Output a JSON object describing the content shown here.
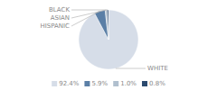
{
  "chart_data": {
    "type": "pie",
    "categories": [
      "WHITE",
      "HISPANIC",
      "ASIAN",
      "BLACK"
    ],
    "values": [
      92.4,
      5.9,
      1.0,
      0.8
    ],
    "value_labels": [
      "92.4%",
      "5.9%",
      "1.0%",
      "0.8%"
    ],
    "colors": [
      "#d6dde8",
      "#5b7fa6",
      "#b0bfce",
      "#2c4a6e"
    ],
    "legend": "bottom"
  }
}
